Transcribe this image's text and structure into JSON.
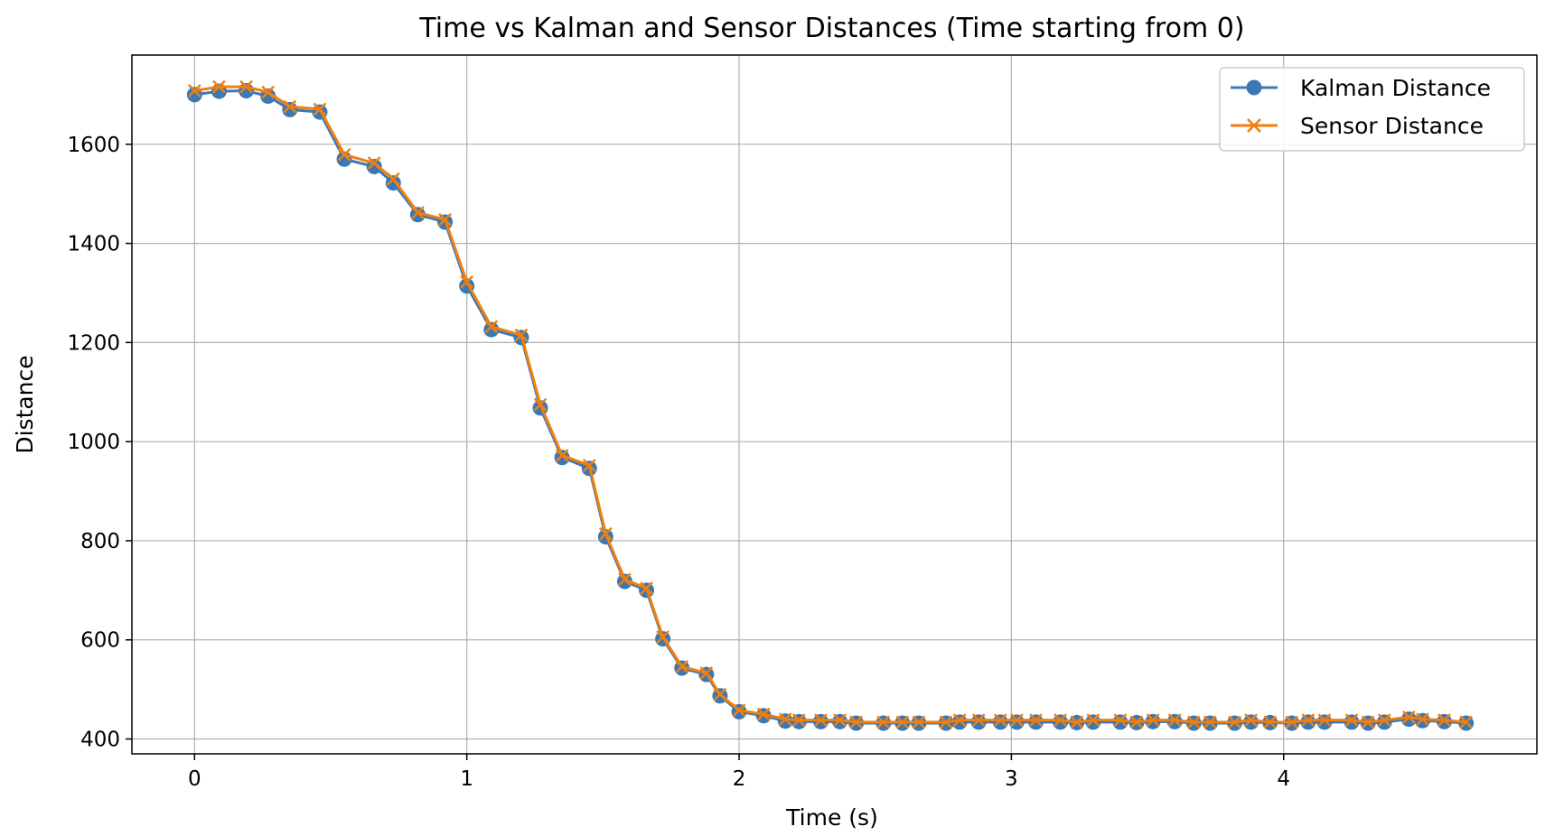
{
  "chart_data": {
    "type": "line",
    "title": "Time vs Kalman and Sensor Distances (Time starting from 0)",
    "xlabel": "Time (s)",
    "ylabel": "Distance",
    "xlim": [
      -0.23,
      4.93
    ],
    "ylim": [
      370,
      1780
    ],
    "xticks": [
      0,
      1,
      2,
      3,
      4
    ],
    "yticks": [
      400,
      600,
      800,
      1000,
      1200,
      1400,
      1600
    ],
    "grid": true,
    "legend_position": "top-right",
    "colors": {
      "kalman": "#3a78b6",
      "sensor": "#f07f0e"
    },
    "x": [
      0,
      0.09,
      0.19,
      0.27,
      0.35,
      0.46,
      0.55,
      0.66,
      0.73,
      0.82,
      0.92,
      1.0,
      1.09,
      1.2,
      1.27,
      1.35,
      1.45,
      1.51,
      1.58,
      1.66,
      1.72,
      1.79,
      1.88,
      1.93,
      2.0,
      2.09,
      2.17,
      2.22,
      2.3,
      2.37,
      2.43,
      2.53,
      2.6,
      2.66,
      2.76,
      2.81,
      2.88,
      2.96,
      3.02,
      3.09,
      3.18,
      3.24,
      3.3,
      3.4,
      3.46,
      3.52,
      3.6,
      3.67,
      3.73,
      3.82,
      3.88,
      3.95,
      4.03,
      4.09,
      4.15,
      4.25,
      4.31,
      4.37,
      4.46,
      4.51,
      4.59,
      4.67
    ],
    "series": [
      {
        "name": "Kalman Distance",
        "marker": "circle",
        "values": [
          1700,
          1707,
          1708,
          1697,
          1670,
          1665,
          1570,
          1555,
          1522,
          1458,
          1443,
          1314,
          1226,
          1210,
          1068,
          968,
          946,
          808,
          718,
          700,
          602,
          543,
          530,
          487,
          455,
          447,
          436,
          435,
          435,
          435,
          432,
          432,
          432,
          432,
          432,
          434,
          434,
          434,
          434,
          434,
          434,
          433,
          434,
          434,
          433,
          435,
          435,
          432,
          432,
          432,
          434,
          433,
          432,
          434,
          434,
          434,
          432,
          434,
          440,
          437,
          435,
          432
        ]
      },
      {
        "name": "Sensor Distance",
        "marker": "x",
        "values": [
          1708,
          1716,
          1716,
          1705,
          1676,
          1671,
          1579,
          1562,
          1530,
          1462,
          1448,
          1322,
          1232,
          1215,
          1075,
          972,
          952,
          814,
          722,
          704,
          606,
          546,
          533,
          490,
          458,
          450,
          440,
          438,
          438,
          438,
          434,
          434,
          434,
          434,
          434,
          438,
          438,
          438,
          438,
          438,
          438,
          434,
          438,
          438,
          434,
          438,
          438,
          434,
          434,
          434,
          438,
          434,
          434,
          438,
          438,
          438,
          434,
          438,
          444,
          440,
          438,
          434
        ]
      }
    ]
  }
}
